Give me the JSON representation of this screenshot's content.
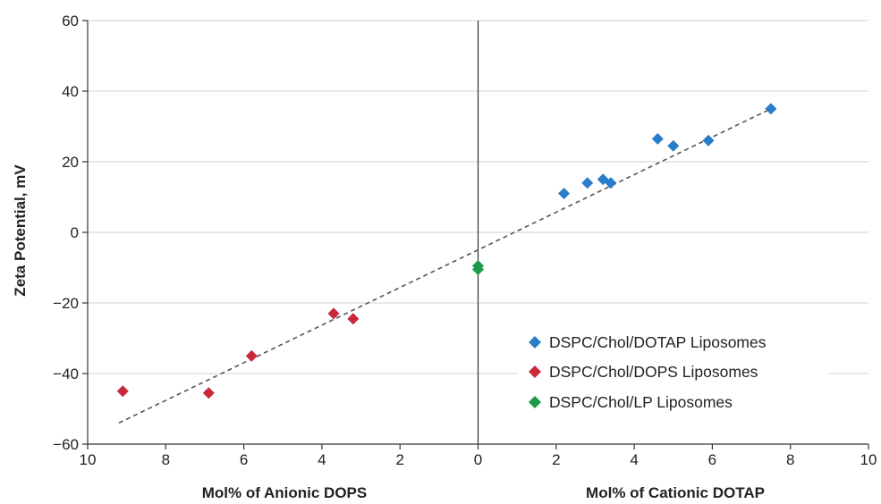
{
  "chart_data": {
    "type": "scatter",
    "x_axis": {
      "range": [
        -10,
        10
      ],
      "tick_values": [
        -10,
        -8,
        -6,
        -4,
        -2,
        0,
        2,
        4,
        6,
        8,
        10
      ],
      "tick_labels": [
        "10",
        "8",
        "6",
        "4",
        "2",
        "0",
        "2",
        "4",
        "6",
        "8",
        "10"
      ],
      "left_label": "Mol% of Anionic DOPS",
      "right_label": "Mol% of Cationic DOTAP"
    },
    "y_axis": {
      "range": [
        -60,
        60
      ],
      "tick_values": [
        60,
        40,
        20,
        0,
        -20,
        -40,
        -60
      ],
      "tick_labels": [
        "60",
        "40",
        "20",
        "0",
        "−20",
        "−40",
        "−60"
      ],
      "label": "Zeta Potential, mV"
    },
    "grid": "horizontal",
    "legend_position": "bottom-right",
    "series": [
      {
        "name": "DSPC/Chol/DOTAP Liposomes",
        "color": "#2a7dc8",
        "marker": "diamond",
        "points": [
          [
            2.2,
            11
          ],
          [
            2.8,
            14
          ],
          [
            3.2,
            15
          ],
          [
            3.4,
            14
          ],
          [
            4.6,
            26.5
          ],
          [
            5.0,
            24.5
          ],
          [
            5.9,
            26
          ],
          [
            7.5,
            35
          ]
        ]
      },
      {
        "name": "DSPC/Chol/DOPS Liposomes",
        "color": "#c8283a",
        "marker": "diamond",
        "points": [
          [
            -9.1,
            -45
          ],
          [
            -6.9,
            -45.5
          ],
          [
            -5.8,
            -35
          ],
          [
            -3.7,
            -23
          ],
          [
            -3.2,
            -24.5
          ]
        ]
      },
      {
        "name": "DSPC/Chol/LP Liposomes",
        "color": "#1e9a4a",
        "marker": "diamond",
        "points": [
          [
            0,
            -9.5
          ],
          [
            0,
            -10.5
          ]
        ]
      }
    ],
    "trendline": {
      "style": "dashed",
      "color": "#555555",
      "points": [
        [
          -9.2,
          -54
        ],
        [
          7.5,
          35
        ]
      ]
    }
  }
}
